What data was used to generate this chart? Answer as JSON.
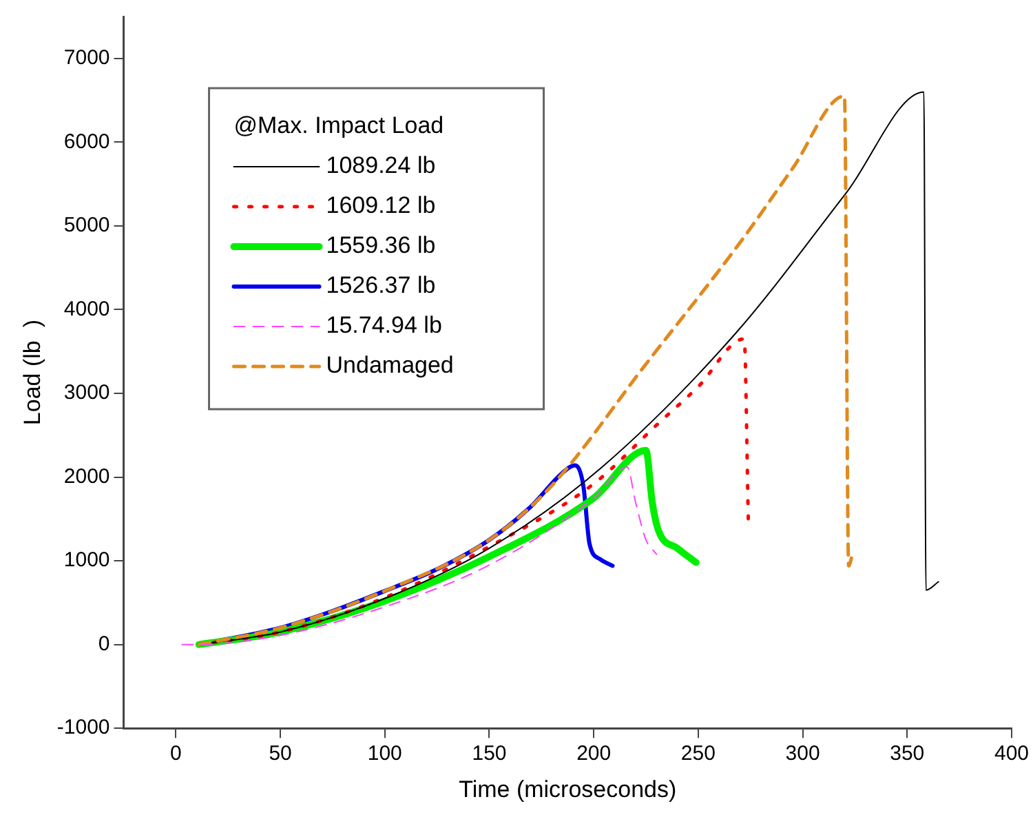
{
  "chart_data": {
    "type": "line",
    "xlabel": "Time (microseconds)",
    "ylabel": "Load (lb  )",
    "legend_title": "@Max. Impact Load",
    "xlim": [
      -25,
      400
    ],
    "xticks": [
      0,
      50,
      100,
      150,
      200,
      250,
      300,
      350,
      400
    ],
    "ylim": [
      -1000,
      7500
    ],
    "yticks": [
      -1000,
      0,
      1000,
      2000,
      3000,
      4000,
      5000,
      6000,
      7000
    ],
    "grid": false,
    "legend": "top left",
    "marker": "none",
    "series": [
      {
        "name": "1089.24 lb",
        "color": "#000000",
        "line_style": "solid",
        "x": [
          11,
          50,
          100,
          150,
          204,
          268,
          321,
          358,
          359,
          365
        ],
        "values": [
          0,
          150,
          550,
          1150,
          2120,
          3720,
          5400,
          6600,
          650,
          750
        ]
      },
      {
        "name": "1609.12 lb",
        "color": "#ff0000",
        "line_style": "dotted",
        "x": [
          11,
          50,
          100,
          150,
          200,
          230,
          250,
          272,
          274
        ],
        "values": [
          0,
          150,
          560,
          1170,
          1920,
          2620,
          3080,
          3650,
          1450
        ]
      },
      {
        "name": "1559.36 lb",
        "color": "#00ee00",
        "line_style": "solid",
        "x": [
          11,
          50,
          100,
          150,
          200,
          225,
          228,
          231,
          240,
          249
        ],
        "values": [
          0,
          150,
          520,
          1050,
          1750,
          2320,
          1700,
          1360,
          1150,
          980
        ]
      },
      {
        "name": "1526.37 lb",
        "color": "#0000ee",
        "line_style": "solid",
        "x": [
          11,
          50,
          75,
          100,
          125,
          150,
          170,
          185,
          191,
          195,
          198,
          203,
          209
        ],
        "values": [
          0,
          200,
          400,
          640,
          900,
          1250,
          1650,
          2050,
          2140,
          1900,
          1200,
          1020,
          940
        ]
      },
      {
        "name": "15.74.94 lb",
        "color": "#ff44ff",
        "line_style": "dashed",
        "x": [
          3,
          11,
          50,
          100,
          150,
          200,
          216,
          220,
          225,
          230
        ],
        "values": [
          0,
          0,
          110,
          450,
          950,
          1750,
          2120,
          1700,
          1250,
          1080
        ]
      },
      {
        "name": "Undamaged",
        "color": "#e08a1e",
        "line_style": "dashed",
        "x": [
          11,
          50,
          100,
          150,
          180,
          225,
          270,
          295,
          320,
          322,
          324
        ],
        "values": [
          0,
          200,
          640,
          1250,
          1900,
          3350,
          4800,
          5680,
          6550,
          940,
          1100
        ]
      }
    ]
  }
}
